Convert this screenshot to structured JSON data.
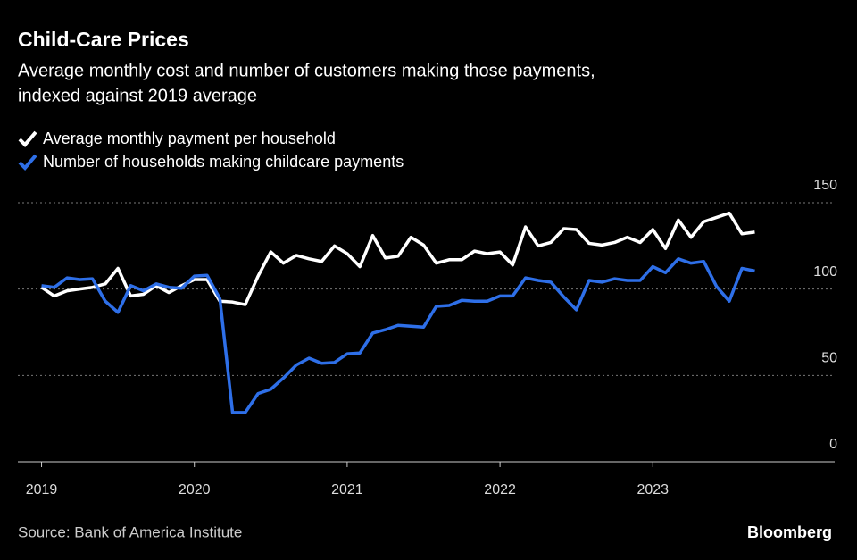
{
  "chart_data": {
    "type": "line",
    "title": "Child-Care Prices",
    "subtitle": [
      "Average monthly cost and number of customers making those payments,",
      "indexed against 2019 average"
    ],
    "source": "Source: Bank of America Institute",
    "brand": "Bloomberg",
    "x": [
      2019,
      2019.083,
      2019.167,
      2019.25,
      2019.333,
      2019.417,
      2019.5,
      2019.583,
      2019.667,
      2019.75,
      2019.833,
      2019.917,
      2020,
      2020.083,
      2020.167,
      2020.25,
      2020.333,
      2020.417,
      2020.5,
      2020.583,
      2020.667,
      2020.75,
      2020.833,
      2020.917,
      2021,
      2021.083,
      2021.167,
      2021.25,
      2021.333,
      2021.417,
      2021.5,
      2021.583,
      2021.667,
      2021.75,
      2021.833,
      2021.917,
      2022,
      2022.083,
      2022.167,
      2022.25,
      2022.333,
      2022.417,
      2022.5,
      2022.583,
      2022.667,
      2022.75,
      2022.833,
      2022.917,
      2023,
      2023.083,
      2023.167,
      2023.25,
      2023.333,
      2023.417,
      2023.5,
      2023.583,
      2023.667
    ],
    "series": [
      {
        "name": "Average monthly payment per household",
        "color": "#ffffff",
        "values": [
          101,
          96,
          99,
          100,
          101,
          103,
          112,
          96,
          97,
          102,
          98,
          102,
          105.5,
          105.5,
          93,
          92.5,
          91,
          107.5,
          121.5,
          115,
          119.5,
          117.5,
          116,
          125,
          120.5,
          113,
          131,
          118,
          119,
          130,
          125.5,
          115,
          117,
          117,
          122,
          120.5,
          121.5,
          114,
          136,
          125,
          127,
          135,
          134.5,
          126.5,
          125.5,
          127,
          130,
          127,
          134.5,
          123.5,
          140,
          130,
          139,
          141.5,
          144,
          132,
          133
        ]
      },
      {
        "name": "Number of households making childcare payments",
        "color": "#2e6fe8",
        "values": [
          102,
          101,
          106.5,
          105.5,
          106,
          93,
          86.5,
          102,
          99,
          103,
          101,
          100.5,
          107.5,
          108,
          94.5,
          28.5,
          28.5,
          39.5,
          42,
          48.5,
          56,
          60,
          57,
          57.5,
          62.5,
          63,
          74.5,
          76.5,
          79,
          78.5,
          78,
          90,
          90.5,
          93.5,
          93,
          93,
          96,
          96,
          106.5,
          105,
          104,
          95.5,
          88,
          105,
          104,
          106,
          105,
          105,
          113,
          109.5,
          117.5,
          115,
          116,
          101.5,
          93,
          112,
          110.5
        ]
      }
    ],
    "xlim": [
      2018.845,
      2024.19
    ],
    "xticks": [
      2019,
      2020,
      2021,
      2022,
      2023
    ],
    "ylim": [
      0,
      150
    ],
    "yticks": [
      0,
      50,
      100,
      150
    ],
    "grid": true
  }
}
